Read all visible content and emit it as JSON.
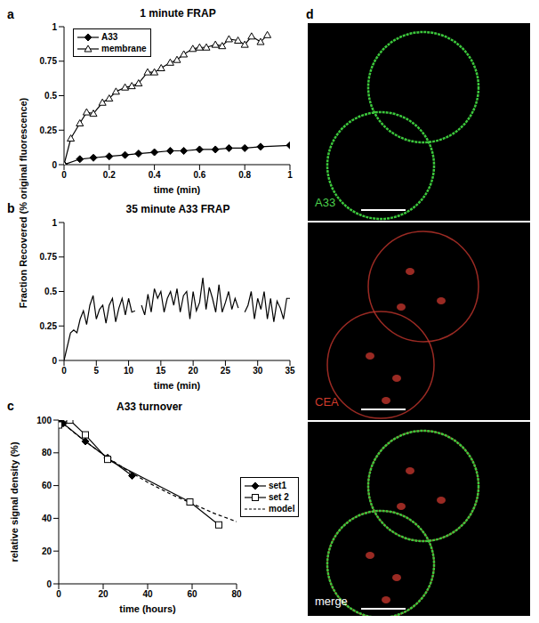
{
  "chart_data": [
    {
      "type": "line",
      "title": "1 minute FRAP",
      "xlabel": "time (min)",
      "xlim": [
        0,
        1
      ],
      "xticks": [
        0,
        0.2,
        0.4,
        0.6,
        0.8,
        1
      ],
      "ylim": [
        0,
        1
      ],
      "yticks": [
        0,
        0.25,
        0.5,
        0.75,
        1
      ],
      "legend": "upper left",
      "series": [
        {
          "name": "A33",
          "color": "#000000",
          "marker": "diamond",
          "x": [
            0,
            0.07,
            0.13,
            0.2,
            0.27,
            0.33,
            0.4,
            0.47,
            0.53,
            0.6,
            0.67,
            0.73,
            0.8,
            0.87,
            1
          ],
          "values": [
            0,
            0.04,
            0.05,
            0.06,
            0.07,
            0.08,
            0.09,
            0.1,
            0.1,
            0.11,
            0.11,
            0.12,
            0.12,
            0.13,
            0.14
          ]
        },
        {
          "name": "membrane",
          "color": "#000000",
          "marker": "open_triangle",
          "x": [
            0,
            0.03,
            0.07,
            0.1,
            0.13,
            0.17,
            0.2,
            0.23,
            0.27,
            0.3,
            0.33,
            0.37,
            0.4,
            0.43,
            0.47,
            0.5,
            0.53,
            0.57,
            0.6,
            0.63,
            0.67,
            0.7,
            0.73,
            0.77,
            0.8,
            0.83,
            0.87,
            0.9
          ],
          "values": [
            0,
            0.19,
            0.3,
            0.38,
            0.37,
            0.45,
            0.48,
            0.53,
            0.56,
            0.57,
            0.59,
            0.67,
            0.67,
            0.7,
            0.74,
            0.76,
            0.8,
            0.84,
            0.85,
            0.85,
            0.87,
            0.86,
            0.91,
            0.9,
            0.87,
            0.93,
            0.89,
            0.94
          ]
        }
      ]
    },
    {
      "type": "line",
      "title": "35 minute A33 FRAP",
      "xlabel": "time (min)",
      "xlim": [
        0,
        35
      ],
      "xticks": [
        0,
        5,
        10,
        15,
        20,
        25,
        30,
        35
      ],
      "ylim": [
        0,
        1
      ],
      "yticks": [
        0,
        0.25,
        0.5,
        0.75,
        1
      ],
      "series": [
        {
          "name": "A33",
          "color": "#000000",
          "marker": "none",
          "x": [
            0,
            0.5,
            1,
            1.5,
            2,
            2.5,
            3,
            3.5,
            4,
            4.5,
            5,
            5.5,
            6,
            6.5,
            7,
            7.5,
            8,
            8.5,
            9,
            9.5,
            10,
            10.5,
            11,
            11.5,
            12,
            12.5,
            13,
            13.5,
            14,
            14.5,
            15,
            15.5,
            16,
            16.5,
            17,
            17.5,
            18,
            18.5,
            19,
            19.5,
            20,
            20.5,
            21,
            21.5,
            22,
            22.5,
            23,
            23.5,
            24,
            24.5,
            25,
            25.5,
            26,
            26.5,
            27,
            27.5,
            28,
            28.5,
            29,
            29.5,
            30,
            30.5,
            31,
            31.5,
            32,
            32.5,
            33,
            33.5,
            34,
            34.5,
            35
          ],
          "values": [
            0,
            0.1,
            0.2,
            0.22,
            0.2,
            0.3,
            0.36,
            0.26,
            0.4,
            0.47,
            0.3,
            0.37,
            0.4,
            0.27,
            0.4,
            0.45,
            0.28,
            0.38,
            0.45,
            0.33,
            0.45,
            0.35,
            0.36,
            null,
            0.4,
            0.33,
            0.48,
            0.35,
            0.52,
            0.45,
            0.5,
            0.35,
            0.45,
            0.5,
            0.4,
            0.52,
            0.35,
            0.47,
            0.5,
            0.3,
            0.5,
            0.36,
            0.42,
            0.6,
            0.37,
            0.53,
            0.45,
            0.35,
            0.55,
            0.35,
            0.42,
            0.5,
            0.37,
            0.45,
            0.38,
            null,
            0.35,
            0.4,
            0.5,
            0.3,
            0.45,
            0.37,
            0.5,
            0.3,
            0.45,
            0.28,
            0.43,
            0.38,
            0.3,
            0.45,
            0.45
          ]
        }
      ]
    },
    {
      "type": "line",
      "title": "A33 turnover",
      "xlabel": "time (hours)",
      "ylabel": "relative signal density (%)",
      "xlim": [
        0,
        80
      ],
      "xticks": [
        0,
        20,
        40,
        60,
        80
      ],
      "ylim": [
        0,
        100
      ],
      "yticks": [
        0,
        20,
        40,
        60,
        80,
        100
      ],
      "legend": "right",
      "series": [
        {
          "name": "set1",
          "color": "#000000",
          "marker": "diamond",
          "x": [
            0,
            2,
            12,
            22,
            33
          ],
          "values": [
            100,
            98,
            87,
            77,
            66
          ]
        },
        {
          "name": "set 2",
          "color": "#000000",
          "marker": "open_square",
          "x": [
            0,
            5,
            12,
            22,
            59,
            72
          ],
          "values": [
            97,
            100,
            91,
            76,
            50,
            36
          ]
        },
        {
          "name": "model",
          "color": "#000000",
          "marker": "none",
          "line_style": "dashed",
          "x": [
            0,
            10,
            20,
            30,
            40,
            50,
            60,
            70,
            80
          ],
          "values": [
            100,
            89,
            79,
            70,
            62,
            55,
            49,
            43,
            38
          ]
        }
      ]
    }
  ],
  "figure": {
    "panel_labels": [
      "a",
      "b",
      "c",
      "d"
    ],
    "ylabel": "Fraction Recovered (% original fluorescence)",
    "images": [
      {
        "label": "A33",
        "color": "#4cd24c"
      },
      {
        "label": "CEA",
        "color": "#d23c2c"
      },
      {
        "label": "merge",
        "color": "#ffffff"
      }
    ]
  }
}
